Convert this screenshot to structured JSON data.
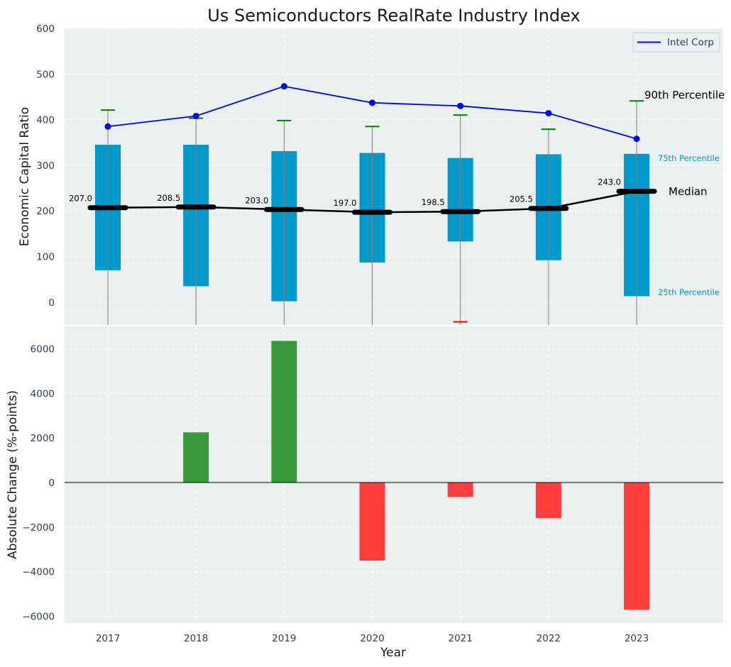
{
  "chart_data": {
    "title": "Us Semiconductors RealRate Industry Index",
    "xlabel": "Year",
    "years": [
      "2017",
      "2018",
      "2019",
      "2020",
      "2021",
      "2022",
      "2023"
    ],
    "top": {
      "type": "box",
      "ylabel": "Economic Capital Ratio",
      "ylim": [
        -50,
        600
      ],
      "yticks": [
        0,
        100,
        200,
        300,
        400,
        500,
        600
      ],
      "grid": true,
      "legend_position": "top-right",
      "percentile_25": [
        70,
        35,
        2,
        87,
        133,
        92,
        13
      ],
      "percentile_75": [
        345,
        345,
        331,
        327,
        316,
        324,
        325
      ],
      "percentile_90": [
        421,
        403,
        398,
        385,
        410,
        379,
        441
      ],
      "lower_whisker_caps": [
        null,
        null,
        null,
        null,
        -43,
        null,
        null
      ],
      "median": [
        207.0,
        208.5,
        203.0,
        197.0,
        198.5,
        205.5,
        243.0
      ],
      "median_labels": [
        "207.0",
        "208.5",
        "203.0",
        "197.0",
        "198.5",
        "205.5",
        "243.0"
      ],
      "series": [
        {
          "name": "Intel Corp",
          "values": [
            385,
            408,
            473,
            437,
            430,
            414,
            358
          ],
          "color": "#0000ff"
        }
      ],
      "annotations": {
        "p90": "90th Percentile",
        "p75": "75th Percentile",
        "median": "Median",
        "p25": "25th Percentile"
      },
      "colors": {
        "box": "#0099cc",
        "whisker": "#7f7f7f",
        "cap_upper": "#008000",
        "cap_lower": "#ff0000",
        "median": "#000000",
        "background": "#eaeff0"
      }
    },
    "bottom": {
      "type": "bar",
      "ylabel": "Absolute Change (%-points)",
      "ylim": [
        -6300,
        7000
      ],
      "yticks": [
        -6000,
        -4000,
        -2000,
        0,
        2000,
        4000,
        6000
      ],
      "grid": true,
      "values": [
        0,
        2250,
        6350,
        -3500,
        -650,
        -1600,
        -5700
      ],
      "colors": {
        "positive": "#3a9a3a",
        "negative": "#ff3d3d",
        "zero_line": "#000000"
      }
    }
  }
}
